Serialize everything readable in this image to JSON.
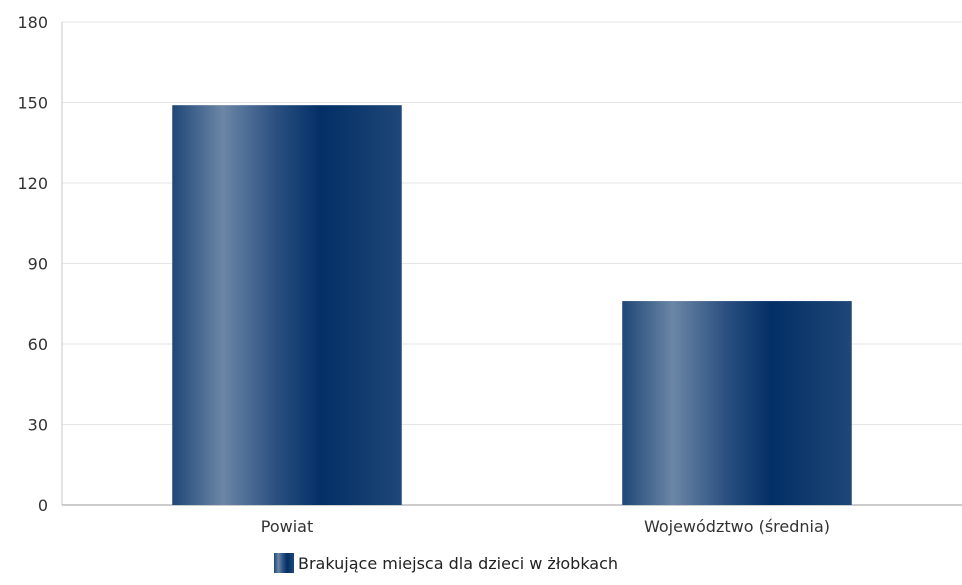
{
  "chart_data": {
    "type": "bar",
    "categories": [
      "Powiat",
      "Województwo (średnia)"
    ],
    "series": [
      {
        "name": "Brakujące miejsca dla dzieci w żłobkach",
        "values": [
          149,
          76
        ]
      }
    ],
    "ylim": [
      0,
      180
    ],
    "yticks": [
      0,
      30,
      60,
      90,
      120,
      150,
      180
    ],
    "grid": true,
    "legend_position": "bottom-center",
    "bar_color": "#0d3a6b"
  }
}
